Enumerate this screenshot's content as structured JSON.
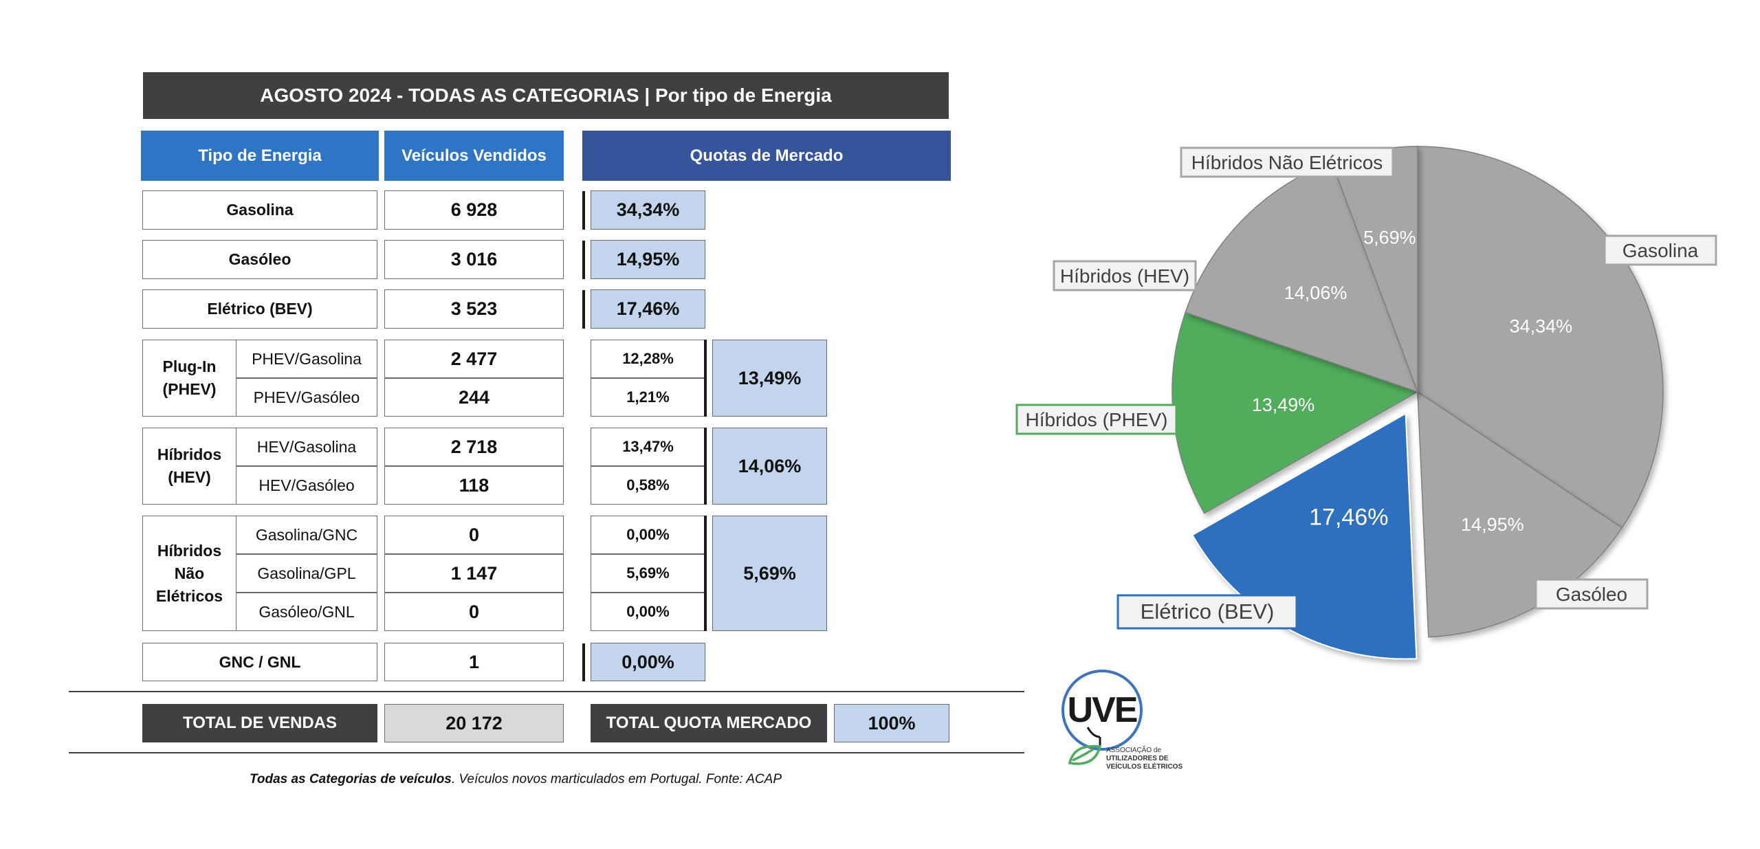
{
  "title": "AGOSTO 2024  - TODAS AS CATEGORIAS | Por tipo de Energia",
  "headers": {
    "energy_type": "Tipo de Energia",
    "vehicles_sold": "Veículos Vendidos",
    "market_share": "Quotas de Mercado"
  },
  "rows_single": [
    {
      "label": "Gasolina",
      "sold": "6 928",
      "share": "34,34%"
    },
    {
      "label": "Gasóleo",
      "sold": "3 016",
      "share": "14,95%"
    },
    {
      "label": "Elétrico (BEV)",
      "sold": "3 523",
      "share": "17,46%"
    }
  ],
  "groups": [
    {
      "label": "Plug-In (PHEV)",
      "label_lines": [
        "Plug-In",
        "(PHEV)"
      ],
      "group_share": "13,49%",
      "sub": [
        {
          "label": "PHEV/Gasolina",
          "sold": "2 477",
          "share": "12,28%"
        },
        {
          "label": "PHEV/Gasóleo",
          "sold": "244",
          "share": "1,21%"
        }
      ]
    },
    {
      "label": "Híbridos (HEV)",
      "label_lines": [
        "Híbridos",
        "(HEV)"
      ],
      "group_share": "14,06%",
      "sub": [
        {
          "label": "HEV/Gasolina",
          "sold": "2 718",
          "share": "13,47%"
        },
        {
          "label": "HEV/Gasóleo",
          "sold": "118",
          "share": "0,58%"
        }
      ]
    },
    {
      "label": "Híbridos Não Elétricos",
      "label_lines": [
        "Híbridos",
        "Não",
        "Elétricos"
      ],
      "group_share": "5,69%",
      "sub": [
        {
          "label": "Gasolina/GNC",
          "sold": "0",
          "share": "0,00%"
        },
        {
          "label": "Gasolina/GPL",
          "sold": "1 147",
          "share": "5,69%"
        },
        {
          "label": "Gasóleo/GNL",
          "sold": "0",
          "share": "0,00%"
        }
      ]
    }
  ],
  "row_gnc": {
    "label": "GNC / GNL",
    "sold": "1",
    "share": "0,00%"
  },
  "totals": {
    "sales_label": "TOTAL DE VENDAS",
    "sales_value": "20 172",
    "share_label": "TOTAL QUOTA MERCADO",
    "share_value": "100%"
  },
  "footnote": {
    "bold": "Todas as Categorias de veículos",
    "rest": ". Veículos novos marticulados em Portugal. Fonte: ACAP"
  },
  "logo": {
    "mark": "UVE",
    "line1": "ASSOCIAÇÃO de",
    "line2": "UTILIZADORES DE",
    "line3": "VEÍCULOS ELÉTRICOS"
  },
  "colors": {
    "grey": "#a6a6a6",
    "green": "#4fad5b",
    "blue": "#2e6fc0"
  },
  "chart_data": {
    "type": "pie",
    "slices": [
      {
        "label": "Gasolina",
        "value": 34.34,
        "value_label": "34,34%",
        "color": "#a6a6a6"
      },
      {
        "label": "Gasóleo",
        "value": 14.95,
        "value_label": "14,95%",
        "color": "#a6a6a6"
      },
      {
        "label": "Elétrico (BEV)",
        "value": 17.46,
        "value_label": "17,46%",
        "color": "#2e6fc0",
        "exploded": true
      },
      {
        "label": "Híbridos (PHEV)",
        "value": 13.49,
        "value_label": "13,49%",
        "color": "#4fad5b"
      },
      {
        "label": "Híbridos (HEV)",
        "value": 14.06,
        "value_label": "14,06%",
        "color": "#a6a6a6"
      },
      {
        "label": "Híbridos Não Elétricos",
        "value": 5.69,
        "value_label": "5,69%",
        "color": "#a6a6a6"
      }
    ]
  }
}
